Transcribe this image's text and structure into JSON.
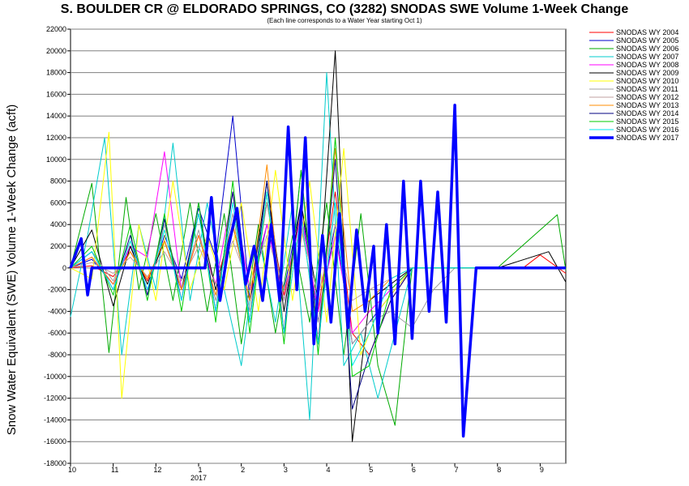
{
  "chart_data": {
    "type": "line",
    "title": "S. BOULDER CR @ ELDORADO SPRINGS, CO (3282) SNODAS SWE Volume 1-Week Change",
    "subtitle": "(Each line corresponds to a Water Year starting Oct 1)",
    "ylabel": "Snow Water Equivalent (SWE) Volume 1-Week Change (acft)",
    "xlabel": "",
    "ylim": [
      -18000,
      22000
    ],
    "yticks": [
      22000,
      20000,
      18000,
      16000,
      14000,
      12000,
      10000,
      8000,
      6000,
      4000,
      2000,
      0,
      -2000,
      -4000,
      -6000,
      -8000,
      -10000,
      -12000,
      -14000,
      -16000,
      -18000
    ],
    "ytick_labels": [
      "22000",
      "20000",
      "18000",
      "16000",
      "14000",
      "12000",
      "10000",
      "8000",
      "6000",
      "4000",
      "2000",
      "0",
      "-2000",
      "-4000",
      "-6000",
      "-8000",
      "-10000",
      "-12000",
      "-14000",
      "-16000",
      "-18000"
    ],
    "xlim": [
      0,
      11.6
    ],
    "xticks": [
      0,
      1,
      2,
      3,
      4,
      5,
      6,
      7,
      8,
      9,
      10,
      11
    ],
    "xtick_labels": [
      "10",
      "11",
      "12",
      "1",
      "2",
      "3",
      "4",
      "5",
      "6",
      "7",
      "8",
      "9"
    ],
    "year_label": "2017",
    "year_label_x": 3,
    "grid": true,
    "legend_position": "right",
    "series": [
      {
        "name": "SNODAS WY 2004",
        "color": "#ff0000",
        "width": 1,
        "x": [
          0,
          0.5,
          1,
          1.4,
          1.8,
          2.2,
          2.6,
          3,
          3.4,
          3.8,
          4.2,
          4.6,
          5,
          5.4,
          5.8,
          6.2,
          6.6,
          7,
          7.5,
          8,
          9,
          10,
          10.6,
          11,
          11.6
        ],
        "y": [
          0,
          200,
          -800,
          1500,
          -1200,
          2500,
          -2000,
          3000,
          -1500,
          4000,
          -3000,
          6000,
          -2500,
          5000,
          -4000,
          7000,
          -6000,
          -8000,
          -3000,
          0,
          0,
          0,
          0,
          1200,
          -500
        ]
      },
      {
        "name": "SNODAS WY 2005",
        "color": "#0000cc",
        "width": 1,
        "x": [
          0,
          0.5,
          1,
          1.4,
          1.8,
          2.2,
          2.6,
          3,
          3.4,
          3.8,
          4.2,
          4.6,
          5,
          5.4,
          5.8,
          6.2,
          6.6,
          7,
          7.5,
          8,
          9,
          10,
          11.6
        ],
        "y": [
          0,
          800,
          -1500,
          2000,
          -2000,
          3000,
          -1000,
          5500,
          1000,
          14000,
          -3000,
          4000,
          -2000,
          6000,
          -5000,
          4000,
          -7000,
          -5000,
          -2500,
          0,
          0,
          0,
          0
        ]
      },
      {
        "name": "SNODAS WY 2006",
        "color": "#00aa00",
        "width": 1,
        "x": [
          0,
          0.5,
          0.9,
          1.3,
          1.6,
          2,
          2.4,
          2.8,
          3.2,
          3.6,
          4,
          4.4,
          4.8,
          5.2,
          5.6,
          6,
          6.4,
          6.8,
          7.2,
          7.6,
          8,
          9,
          10,
          11.4,
          11.6
        ],
        "y": [
          0,
          7800,
          -7800,
          6500,
          -2000,
          5000,
          -3000,
          6000,
          -4000,
          5000,
          -7000,
          4000,
          -6000,
          3000,
          -5000,
          6000,
          -8000,
          5000,
          -9000,
          -14500,
          0,
          0,
          0,
          4900,
          -200
        ]
      },
      {
        "name": "SNODAS WY 2007",
        "color": "#00cccc",
        "width": 1,
        "x": [
          0,
          0.4,
          0.8,
          1.2,
          1.6,
          2,
          2.4,
          2.8,
          3.2,
          3.6,
          4,
          4.4,
          4.8,
          5.2,
          5.6,
          6,
          6.4,
          6.8,
          7.2,
          7.6,
          8,
          9,
          10,
          11.6
        ],
        "y": [
          -4500,
          3000,
          12000,
          -8000,
          4000,
          -2000,
          11500,
          -3000,
          6000,
          -2000,
          -9000,
          3000,
          -5000,
          6000,
          -14000,
          18000,
          -9000,
          -6000,
          -12000,
          -6000,
          0,
          0,
          0,
          0
        ]
      },
      {
        "name": "SNODAS WY 2008",
        "color": "#ff00ff",
        "width": 1,
        "x": [
          0,
          0.5,
          1,
          1.4,
          1.8,
          2.2,
          2.6,
          3,
          3.4,
          3.8,
          4.2,
          4.6,
          5,
          5.4,
          5.8,
          6.2,
          6.6,
          7,
          7.5,
          8,
          9,
          10,
          11.6
        ],
        "y": [
          0,
          1000,
          -1500,
          2000,
          1000,
          10700,
          -2000,
          3000,
          -1500,
          7000,
          -2000,
          4000,
          -3000,
          5000,
          -4000,
          3000,
          -6000,
          -4000,
          -2000,
          0,
          0,
          0,
          0
        ]
      },
      {
        "name": "SNODAS WY 2009",
        "color": "#000000",
        "width": 1,
        "x": [
          0,
          0.5,
          1,
          1.4,
          1.8,
          2.2,
          2.6,
          3,
          3.4,
          3.8,
          4.2,
          4.6,
          5,
          5.4,
          5.8,
          6.2,
          6.6,
          7,
          7.5,
          8,
          9,
          10,
          11.2,
          11.6
        ],
        "y": [
          0,
          3500,
          -3500,
          2000,
          -1500,
          2500,
          -2000,
          5000,
          -2000,
          4000,
          -3000,
          8000,
          -4000,
          6000,
          -3000,
          20000,
          -16000,
          -3000,
          -1500,
          0,
          0,
          0,
          1500,
          -1300
        ]
      },
      {
        "name": "SNODAS WY 2010",
        "color": "#ffff00",
        "width": 1,
        "x": [
          0,
          0.5,
          0.9,
          1.2,
          1.6,
          2,
          2.4,
          2.8,
          3.2,
          3.6,
          4,
          4.4,
          4.8,
          5.2,
          5.6,
          6,
          6.4,
          6.8,
          7.2,
          7.6,
          8,
          9,
          10,
          11.6
        ],
        "y": [
          0,
          -1000,
          12500,
          -12000,
          4000,
          -3000,
          8000,
          -2000,
          3000,
          -2000,
          6000,
          -4000,
          9000,
          -3000,
          8000,
          -5000,
          11000,
          -8000,
          -4000,
          -2000,
          0,
          0,
          0,
          0
        ]
      },
      {
        "name": "SNODAS WY 2011",
        "color": "#a0a0a0",
        "width": 1,
        "x": [
          0,
          0.5,
          1,
          1.4,
          1.8,
          2.2,
          2.6,
          3,
          3.4,
          3.8,
          4.2,
          4.6,
          5,
          5.4,
          5.8,
          6.2,
          6.6,
          7,
          7.5,
          8,
          8.5,
          9,
          10,
          11.6
        ],
        "y": [
          0,
          1500,
          -1200,
          2500,
          -2500,
          4000,
          -2000,
          3500,
          -3000,
          5000,
          -4000,
          6000,
          -3000,
          4000,
          -5000,
          6000,
          -7000,
          -5000,
          -4000,
          -5500,
          -2000,
          0,
          0,
          0
        ]
      },
      {
        "name": "SNODAS WY 2012",
        "color": "#c0a0a0",
        "width": 1,
        "x": [
          0,
          0.5,
          1,
          1.4,
          1.8,
          2.2,
          2.6,
          3,
          3.4,
          3.8,
          4.2,
          4.6,
          5,
          5.4,
          5.8,
          6.2,
          6.6,
          7,
          7.5,
          8,
          9,
          10,
          11.6
        ],
        "y": [
          0,
          500,
          -500,
          1000,
          -800,
          1500,
          -1200,
          2000,
          -1500,
          2500,
          -1800,
          3000,
          -2000,
          3500,
          -2500,
          4000,
          -3000,
          -2000,
          -1000,
          0,
          0,
          0,
          0
        ]
      },
      {
        "name": "SNODAS WY 2013",
        "color": "#ff8c00",
        "width": 1,
        "x": [
          0,
          0.5,
          1,
          1.4,
          1.8,
          2.2,
          2.6,
          3,
          3.4,
          3.8,
          4.2,
          4.6,
          5,
          5.4,
          5.8,
          6.2,
          6.6,
          7,
          7.5,
          8,
          9,
          10,
          11.6
        ],
        "y": [
          0,
          1000,
          -1500,
          1500,
          -1000,
          2500,
          -2000,
          3000,
          -2500,
          4000,
          -3000,
          9500,
          -6000,
          5000,
          -7000,
          11000,
          -4000,
          -3000,
          -1000,
          0,
          0,
          0,
          0
        ]
      },
      {
        "name": "SNODAS WY 2014",
        "color": "#000080",
        "width": 1,
        "x": [
          0,
          0.5,
          1,
          1.4,
          1.8,
          2.2,
          2.6,
          3,
          3.4,
          3.8,
          4.2,
          4.6,
          5,
          5.4,
          5.8,
          6.2,
          6.6,
          7,
          7.5,
          8,
          9,
          10,
          11.6
        ],
        "y": [
          0,
          1500,
          -2000,
          3000,
          -2500,
          4500,
          -3000,
          6000,
          -4000,
          7000,
          -5000,
          8000,
          -6000,
          9000,
          -7000,
          10000,
          -13000,
          -8000,
          -3000,
          0,
          0,
          0,
          0
        ]
      },
      {
        "name": "SNODAS WY 2015",
        "color": "#00cc00",
        "width": 1,
        "x": [
          0,
          0.5,
          1,
          1.4,
          1.8,
          2.2,
          2.6,
          3,
          3.4,
          3.8,
          4.2,
          4.6,
          5,
          5.4,
          5.8,
          6.2,
          6.6,
          7,
          7.5,
          8,
          9,
          10,
          11.6
        ],
        "y": [
          0,
          2000,
          -2500,
          4000,
          -3000,
          5000,
          -4000,
          6000,
          -5000,
          8000,
          -6000,
          7000,
          -7000,
          9000,
          -8000,
          12000,
          -10000,
          -9000,
          -2000,
          0,
          0,
          0,
          0
        ]
      },
      {
        "name": "SNODAS WY 2016",
        "color": "#00e5ee",
        "width": 1,
        "x": [
          0,
          0.5,
          1,
          1.4,
          1.8,
          2.2,
          2.6,
          3,
          3.4,
          3.8,
          4.2,
          4.6,
          5,
          5.4,
          5.8,
          6.2,
          6.6,
          7,
          7.5,
          8,
          9,
          10,
          11.6
        ],
        "y": [
          0,
          1500,
          -2000,
          2500,
          -2000,
          3500,
          -3000,
          5000,
          -4000,
          6000,
          -5000,
          7000,
          -6000,
          5000,
          -7000,
          6000,
          -9000,
          -6000,
          -1000,
          0,
          0,
          0,
          0
        ]
      },
      {
        "name": "SNODAS WY 2017",
        "color": "#0000ff",
        "width": 3.5,
        "x": [
          0,
          0.25,
          0.4,
          0.5,
          0.65,
          0.8,
          0.95,
          1.2,
          1.5,
          1.8,
          2.1,
          2.3,
          2.5,
          2.8,
          3,
          3.15,
          3.3,
          3.5,
          3.7,
          3.9,
          4.1,
          4.3,
          4.5,
          4.7,
          4.9,
          5.1,
          5.3,
          5.5,
          5.7,
          5.9,
          6.1,
          6.3,
          6.5,
          6.7,
          6.9,
          7.1,
          7.2,
          7.4,
          7.6,
          7.8,
          8,
          8.2,
          8.4,
          8.6,
          8.8,
          9,
          9.2,
          9.5,
          10,
          11,
          11.6
        ],
        "y": [
          0,
          2700,
          -2500,
          0,
          0,
          0,
          0,
          0,
          0,
          0,
          0,
          0,
          0,
          0,
          0,
          0,
          6500,
          -3000,
          2000,
          5500,
          -1500,
          2000,
          -3000,
          4000,
          -3000,
          13000,
          -2000,
          12000,
          -7000,
          3000,
          -5000,
          5000,
          -5500,
          3500,
          -4000,
          2000,
          -6000,
          4000,
          -7000,
          8000,
          -6500,
          8000,
          -4000,
          7000,
          -5000,
          15000,
          -15500,
          0,
          0,
          0,
          0
        ]
      }
    ]
  }
}
